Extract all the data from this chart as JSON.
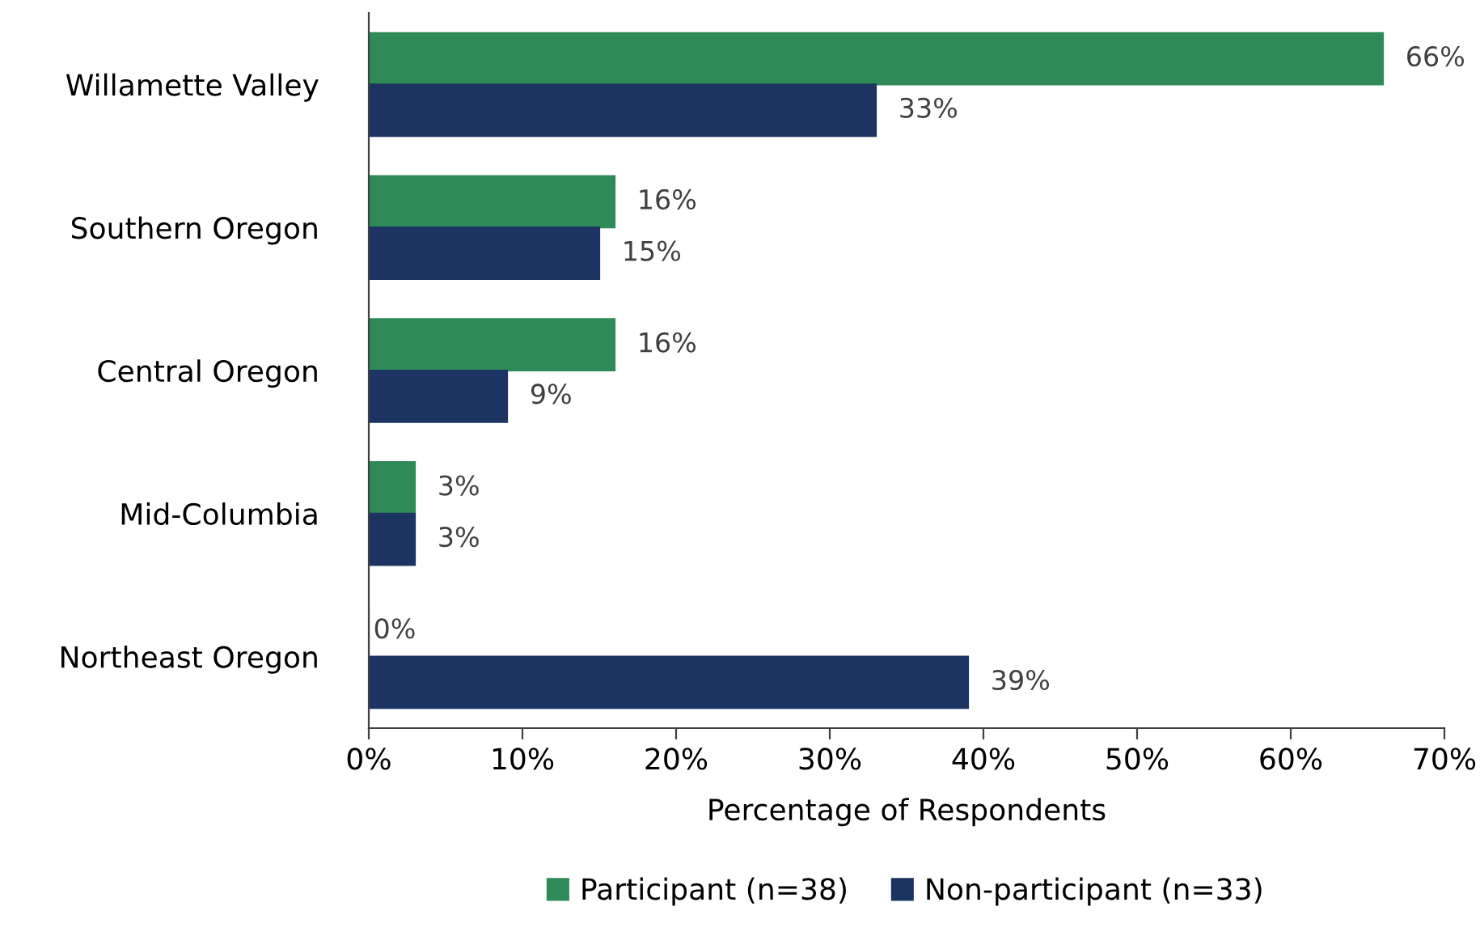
{
  "chart_data": {
    "type": "bar",
    "orientation": "horizontal",
    "xlabel": "Percentage of Respondents",
    "categories": [
      "Willamette Valley",
      "Southern Oregon",
      "Central Oregon",
      "Mid-Columbia",
      "Northeast Oregon"
    ],
    "series": [
      {
        "name": "Participant (n=38)",
        "color": "#2e8b57",
        "values": [
          66,
          16,
          16,
          3,
          0
        ],
        "value_labels": [
          "66%",
          "16%",
          "16%",
          "3%",
          "0%"
        ]
      },
      {
        "name": "Non-participant (n=33)",
        "color": "#1c3461",
        "values": [
          33,
          15,
          9,
          3,
          39
        ],
        "value_labels": [
          "33%",
          "15%",
          "9%",
          "3%",
          "39%"
        ]
      }
    ],
    "xlim": [
      0,
      70
    ],
    "xticks": [
      {
        "value": 0,
        "label": "0%"
      },
      {
        "value": 10,
        "label": "10%"
      },
      {
        "value": 20,
        "label": "20%"
      },
      {
        "value": 30,
        "label": "30%"
      },
      {
        "value": 40,
        "label": "40%"
      },
      {
        "value": 50,
        "label": "50%"
      },
      {
        "value": 60,
        "label": "60%"
      },
      {
        "value": 70,
        "label": "70%"
      }
    ],
    "grid": false,
    "legend": "bottom"
  }
}
